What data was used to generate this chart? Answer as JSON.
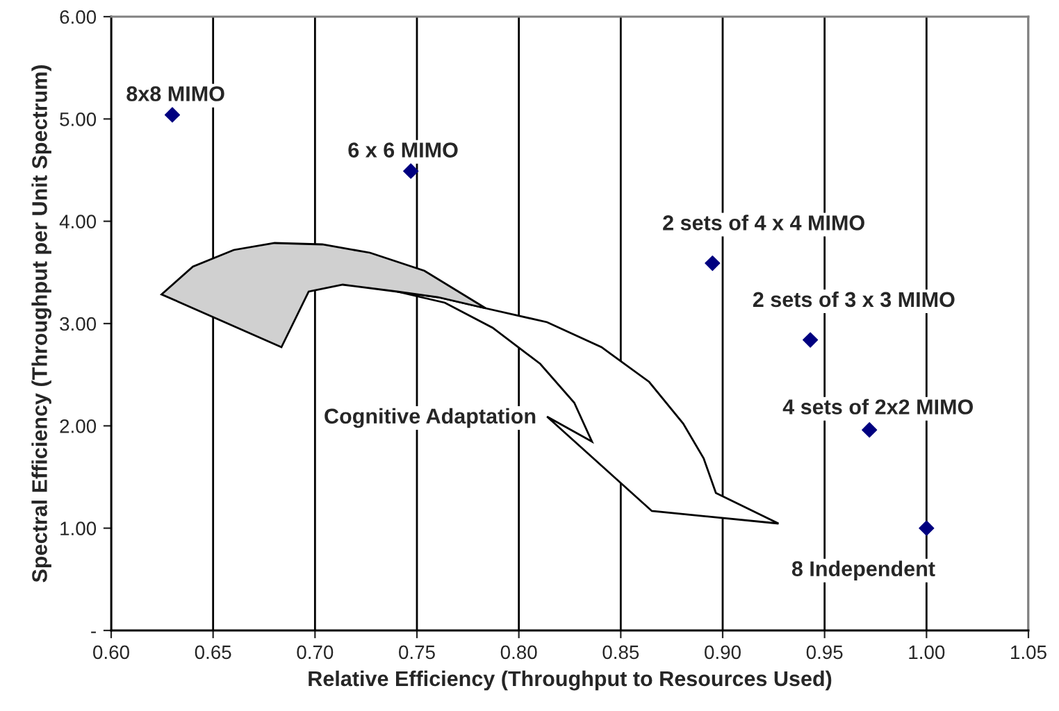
{
  "chart_data": {
    "type": "scatter",
    "xlabel": "Relative Efficiency (Throughput to Resources Used)",
    "ylabel": "Spectral Efficiency (Throughput per Unit Spectrum)",
    "x": [
      0.63,
      0.747,
      0.895,
      0.943,
      0.972,
      1.0
    ],
    "series": [
      {
        "color": "#000080",
        "values": [
          5.04,
          4.49,
          3.59,
          2.84,
          1.96,
          1.0
        ]
      }
    ],
    "marker": "diamond",
    "grid": "x",
    "xlim": [
      0.6,
      1.05
    ],
    "xticks": [
      {
        "value": 0.6,
        "label": "0.60"
      },
      {
        "value": 0.65,
        "label": "0.65"
      },
      {
        "value": 0.7,
        "label": "0.70"
      },
      {
        "value": 0.75,
        "label": "0.75"
      },
      {
        "value": 0.8,
        "label": "0.80"
      },
      {
        "value": 0.85,
        "label": "0.85"
      },
      {
        "value": 0.9,
        "label": "0.90"
      },
      {
        "value": 0.95,
        "label": "0.95"
      },
      {
        "value": 1.0,
        "label": "1.00"
      },
      {
        "value": 1.05,
        "label": "1.05"
      }
    ],
    "ylim": [
      0,
      6
    ],
    "yticks": [
      {
        "value": 0,
        "label": "-"
      },
      {
        "value": 1,
        "label": "1.00"
      },
      {
        "value": 2,
        "label": "2.00"
      },
      {
        "value": 3,
        "label": "3.00"
      },
      {
        "value": 4,
        "label": "4.00"
      },
      {
        "value": 5,
        "label": "5.00"
      },
      {
        "value": 6,
        "label": "6.00"
      }
    ],
    "annotations": [
      {
        "text": "8x8 MIMO",
        "x": 0.63,
        "y": 5.04
      },
      {
        "text": "6 x 6 MIMO",
        "x": 0.747,
        "y": 4.49
      },
      {
        "text": "2 sets of 4 x 4 MIMO",
        "x": 0.895,
        "y": 3.59
      },
      {
        "text": "2 sets of 3 x 3 MIMO",
        "x": 0.943,
        "y": 2.84
      },
      {
        "text": "4 sets of 2x2 MIMO",
        "x": 0.972,
        "y": 1.96
      },
      {
        "text": "8 Independent",
        "x": 1.0,
        "y": 1.0
      },
      "Cognitive Adaptation"
    ]
  }
}
